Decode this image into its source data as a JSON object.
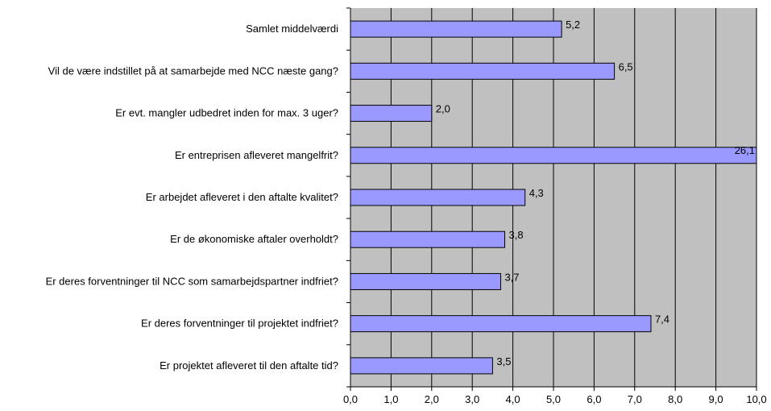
{
  "chart_data": {
    "type": "bar",
    "orientation": "horizontal",
    "categories": [
      "Samlet middelværdi",
      "Vil de være indstillet på at samarbejde med NCC næste gang?",
      "Er evt. mangler udbedret inden for max. 3 uger?",
      "Er entreprisen afleveret mangelfrit?",
      "Er arbejdet afleveret i den aftalte kvalitet?",
      "Er de økonomiske aftaler overholdt?",
      "Er deres forventninger til NCC som samarbejdspartner indfriet?",
      "Er deres forventninger til projektet indfriet?",
      "Er projektet afleveret til den aftalte tid?"
    ],
    "values": [
      5.2,
      6.5,
      2.0,
      26.1,
      4.3,
      3.8,
      3.7,
      7.4,
      3.5
    ],
    "value_labels": [
      "5,2",
      "6,5",
      "2,0",
      "26,1",
      "4,3",
      "3,8",
      "3,7",
      "7,4",
      "3,5"
    ],
    "xlim": [
      0,
      10
    ],
    "x_ticks": [
      0,
      1,
      2,
      3,
      4,
      5,
      6,
      7,
      8,
      9,
      10
    ],
    "x_tick_labels": [
      "0,0",
      "1,0",
      "2,0",
      "3,0",
      "4,0",
      "5,0",
      "6,0",
      "7,0",
      "8,0",
      "9,0",
      "10,0"
    ],
    "title": "",
    "xlabel": "",
    "ylabel": "",
    "grid": "vertical",
    "legend": "none",
    "colors": {
      "plot_background": "#c0c0c0",
      "bar_fill": "#9999ff",
      "bar_stroke": "#000000",
      "grid": "#000000"
    }
  }
}
